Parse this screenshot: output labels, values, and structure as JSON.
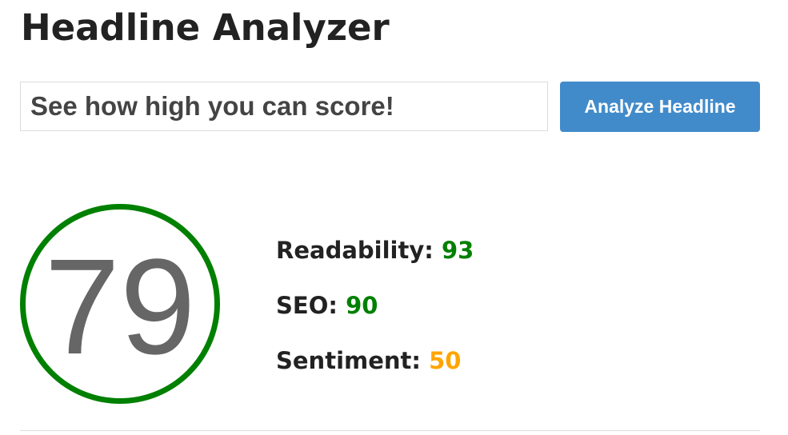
{
  "title": "Headline Analyzer",
  "input": {
    "value": "See how high you can score!"
  },
  "button": "Analyze Headline",
  "score": "79",
  "score_color": "#008000",
  "metrics": [
    {
      "label": "Readability:",
      "value": "93",
      "color": "#008000"
    },
    {
      "label": "SEO:",
      "value": "90",
      "color": "#008000"
    },
    {
      "label": "Sentiment:",
      "value": "50",
      "color": "#ffa500"
    }
  ]
}
